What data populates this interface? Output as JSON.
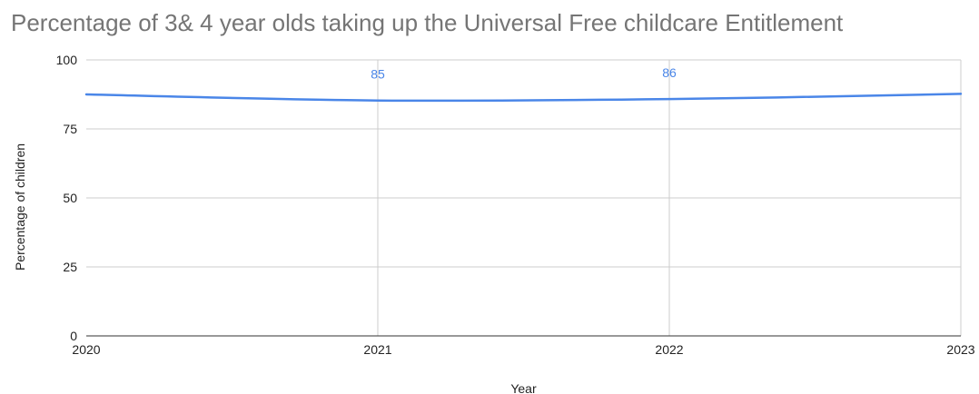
{
  "chart_data": {
    "type": "line",
    "title": "Percentage of 3& 4 year olds taking up the Universal Free childcare Entitlement",
    "xlabel": "Year",
    "ylabel": "Percentage of children",
    "x": [
      "2020",
      "2021",
      "2022",
      "2023"
    ],
    "series": [
      {
        "values": [
          87.5,
          85.3,
          85.8,
          87.7
        ],
        "color": "#4a86e8"
      }
    ],
    "data_labels": [
      {
        "index": 1,
        "text": "85"
      },
      {
        "index": 2,
        "text": "86"
      }
    ],
    "ylim": [
      0,
      100
    ],
    "yticks": [
      0,
      25,
      50,
      75,
      100
    ],
    "grid": true,
    "legend": "none"
  }
}
